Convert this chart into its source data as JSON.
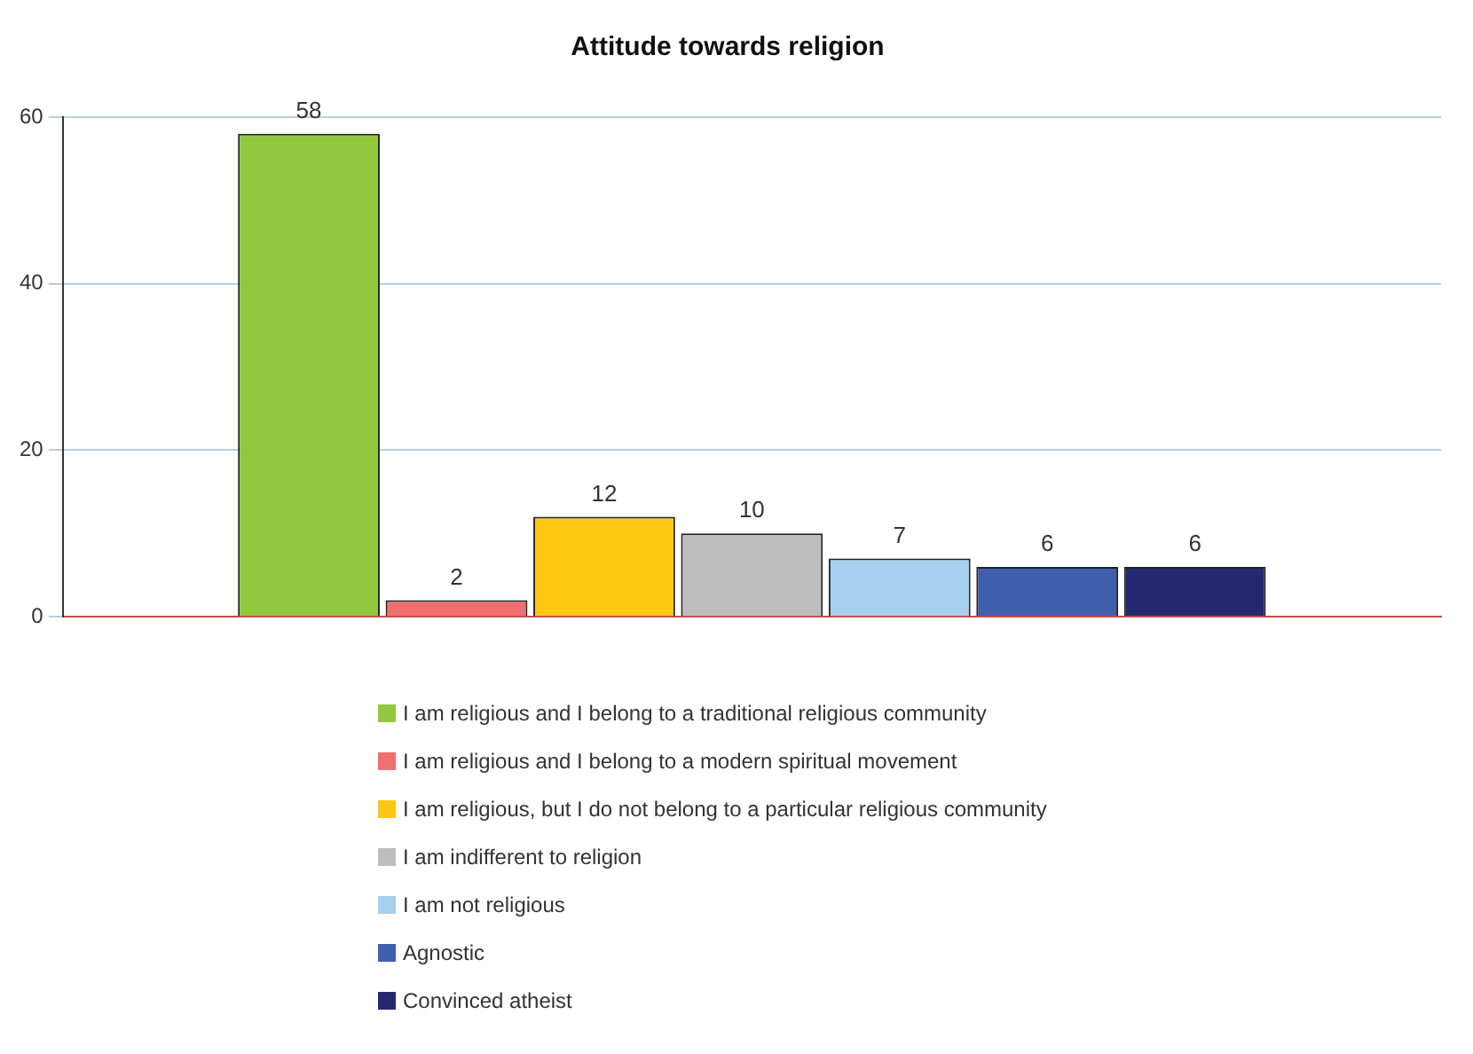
{
  "chart_data": {
    "type": "bar",
    "title": "Attitude towards religion",
    "categories": [
      null
    ],
    "series": [
      {
        "name": "I am religious and I belong to a traditional religious community",
        "color": "#92c83e",
        "values": [
          58
        ]
      },
      {
        "name": "I am religious and I belong to a modern spiritual movement",
        "color": "#f07070",
        "values": [
          2
        ]
      },
      {
        "name": "I am religious, but I do not belong to a particular religious community",
        "color": "#fcc814",
        "values": [
          12
        ]
      },
      {
        "name": "I am indifferent to religion",
        "color": "#bdbdbd",
        "values": [
          10
        ]
      },
      {
        "name": "I am not religious",
        "color": "#a6d0ee",
        "values": [
          7
        ]
      },
      {
        "name": "Agnostic",
        "color": "#3f5fae",
        "values": [
          6
        ]
      },
      {
        "name": "Convinced atheist",
        "color": "#25286e",
        "values": [
          6
        ]
      }
    ],
    "ylim": [
      0,
      60
    ],
    "yticks": [
      0,
      20,
      40,
      60
    ],
    "grid": "y",
    "legend": "bottom",
    "data_labels": true
  }
}
